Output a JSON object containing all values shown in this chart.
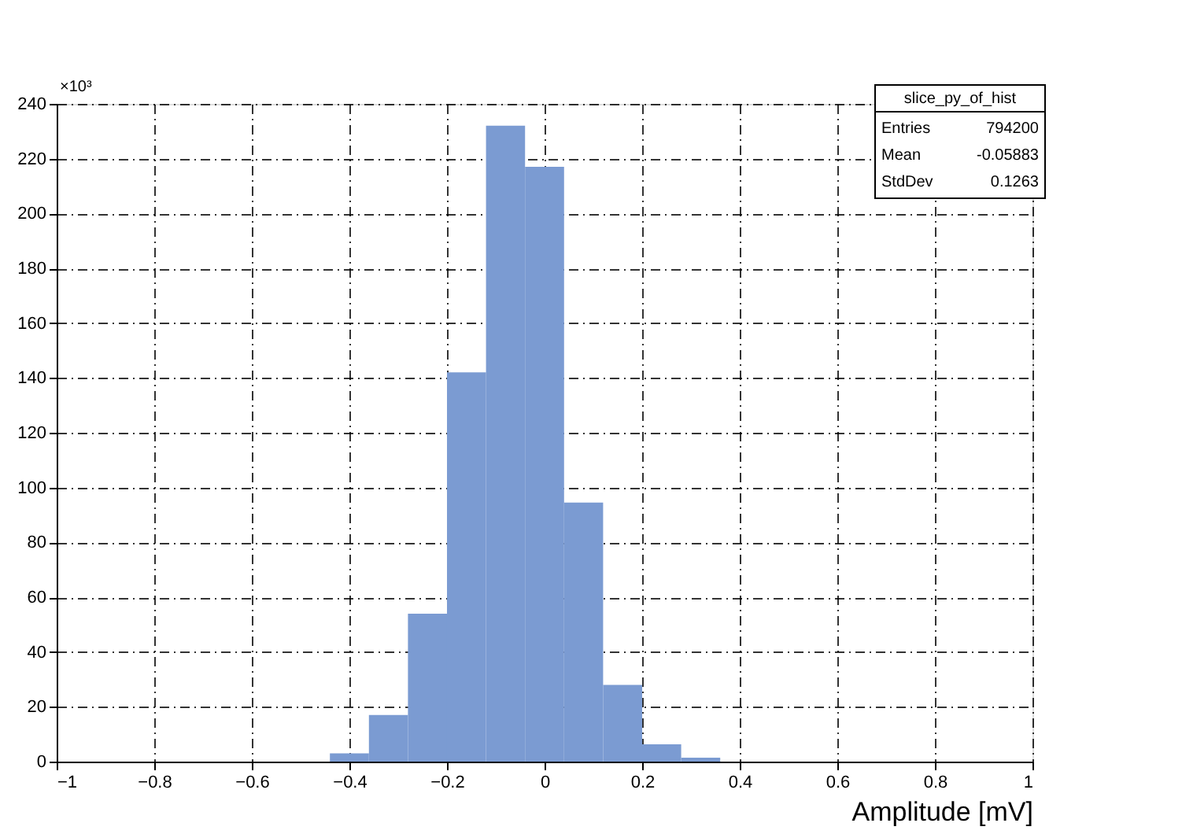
{
  "chart_data": {
    "type": "histogram",
    "xlabel": "Amplitude [mV]",
    "bins": [
      -0.44,
      -0.36,
      -0.28,
      -0.2,
      -0.12,
      -0.04,
      0.04,
      0.12,
      0.2,
      0.28,
      0.36
    ],
    "values": [
      3,
      17,
      54,
      142,
      232,
      217,
      94.5,
      28,
      6.3,
      1.4
    ],
    "color": "#7b9bd2",
    "xlim": [
      -1,
      1
    ],
    "xticks": [
      -1,
      -0.8,
      -0.6,
      -0.4,
      -0.2,
      0,
      0.2,
      0.4,
      0.6,
      0.8,
      1
    ],
    "ylim": [
      0,
      240
    ],
    "yticks": [
      0,
      20,
      40,
      60,
      80,
      100,
      120,
      140,
      160,
      180,
      200,
      220,
      240
    ],
    "grid": true,
    "annotations": [
      "×10³",
      "slice_py_of_hist",
      "Entries 794200",
      "Mean -0.05883",
      "StdDev 0.1263"
    ]
  }
}
